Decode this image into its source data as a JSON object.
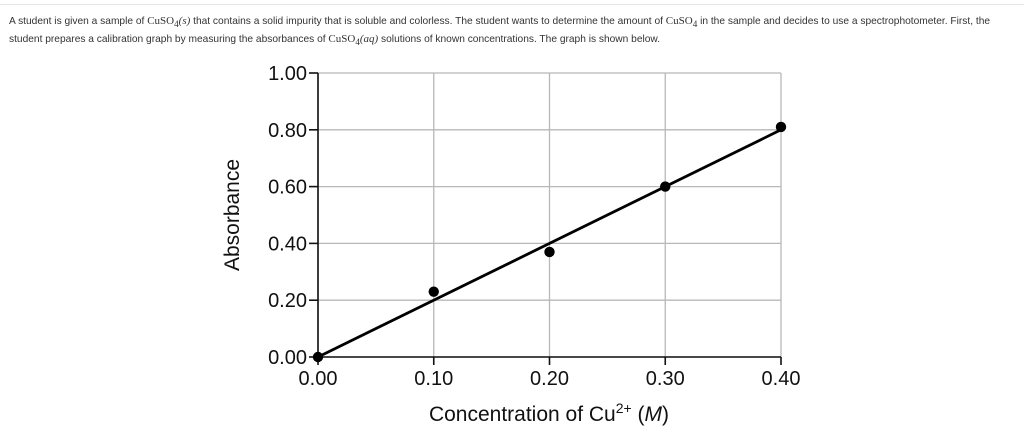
{
  "question": {
    "part1": "A student is given a sample of ",
    "f1": "CuSO",
    "f1_sub": "4",
    "f1_state": "(s)",
    "part2": " that contains a solid impurity that is soluble and colorless. The student wants to determine the amount of ",
    "f2": "CuSO",
    "f2_sub": "4",
    "part3": " in the sample and decides to use a spectrophotometer. First, the student prepares a calibration graph by measuring the absorbances of ",
    "f3": "CuSO",
    "f3_sub": "4",
    "f3_state": "(aq)",
    "part4": " solutions of known concentrations. The graph is shown below."
  },
  "chart_data": {
    "type": "scatter",
    "xlabel": "Concentration of Cu",
    "xlabel_sup": "2+",
    "xlabel_unit_open": " (",
    "xlabel_unit": "M",
    "xlabel_unit_close": ")",
    "ylabel": "Absorbance",
    "xlim": [
      0.0,
      0.4
    ],
    "ylim": [
      0.0,
      1.0
    ],
    "x_ticks": [
      "0.00",
      "0.10",
      "0.20",
      "0.30",
      "0.40"
    ],
    "y_ticks": [
      "0.00",
      "0.20",
      "0.40",
      "0.60",
      "0.80",
      "1.00"
    ],
    "grid": true,
    "points": [
      {
        "x": 0.0,
        "y": 0.0
      },
      {
        "x": 0.1,
        "y": 0.23
      },
      {
        "x": 0.2,
        "y": 0.37
      },
      {
        "x": 0.3,
        "y": 0.6
      },
      {
        "x": 0.4,
        "y": 0.81
      }
    ],
    "fit_line": {
      "x": [
        0.0,
        0.4
      ],
      "y": [
        0.0,
        0.8
      ]
    },
    "colors": {
      "grid": "#b8b8b8",
      "axis": "#111111",
      "mark": "#000000"
    }
  }
}
